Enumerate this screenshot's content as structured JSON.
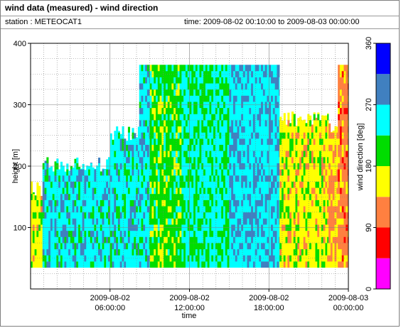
{
  "window": {
    "title": "wind data (measured) - wind direction",
    "station_label": "station : METEOCAT1",
    "time_label": "time: 2009-08-02 00:10:00 to 2009-08-03 00:00:00"
  },
  "chart_data": {
    "type": "heatmap",
    "title": "",
    "xlabel": "time",
    "ylabel": "height [m]",
    "x_ticks": [
      {
        "hour": 6,
        "line1": "2009-08-02",
        "line2": "06:00:00"
      },
      {
        "hour": 12,
        "line1": "2009-08-02",
        "line2": "12:00:00"
      },
      {
        "hour": 18,
        "line1": "2009-08-02",
        "line2": "18:00:00"
      },
      {
        "hour": 24,
        "line1": "2009-08-03",
        "line2": "00:00:00"
      }
    ],
    "xlim_hours": [
      0,
      24
    ],
    "y_ticks": [
      100,
      200,
      300,
      400
    ],
    "ylim": [
      0,
      400
    ],
    "colorbar": {
      "label": "wind direction [deg]",
      "ticks": [
        0,
        90,
        180,
        270,
        360
      ],
      "range": [
        0,
        360
      ],
      "colors": [
        "#ff00ff",
        "#ff0000",
        "#ff8040",
        "#ffff00",
        "#00dd00",
        "#00ffff",
        "#4080c0",
        "#0000ff"
      ]
    },
    "grid": true,
    "measurement_floor_m": 35,
    "data_summary": [
      {
        "from_hour": 0.0,
        "to_hour": 0.9,
        "top_m": 175,
        "dominant_direction_deg": 160,
        "note": "mixed lower directions"
      },
      {
        "from_hour": 0.9,
        "to_hour": 6.0,
        "top_m": 215,
        "dominant_direction_deg": 250
      },
      {
        "from_hour": 6.0,
        "to_hour": 8.2,
        "top_m": 265,
        "dominant_direction_deg": 250
      },
      {
        "from_hour": 8.2,
        "to_hour": 9.0,
        "top_m": 365,
        "dominant_direction_deg": 250
      },
      {
        "from_hour": 9.0,
        "to_hour": 11.4,
        "top_m": 365,
        "dominant_direction_deg": 200
      },
      {
        "from_hour": 11.4,
        "to_hour": 15.0,
        "top_m": 365,
        "dominant_direction_deg": 230
      },
      {
        "from_hour": 15.0,
        "to_hour": 18.8,
        "top_m": 365,
        "dominant_direction_deg": 260
      },
      {
        "from_hour": 18.8,
        "to_hour": 22.5,
        "top_m": 290,
        "dominant_direction_deg": 160
      },
      {
        "from_hour": 22.5,
        "to_hour": 23.2,
        "top_m": 270,
        "dominant_direction_deg": 135
      },
      {
        "from_hour": 23.2,
        "to_hour": 24.0,
        "top_m": 365,
        "dominant_direction_deg": 115
      }
    ]
  }
}
